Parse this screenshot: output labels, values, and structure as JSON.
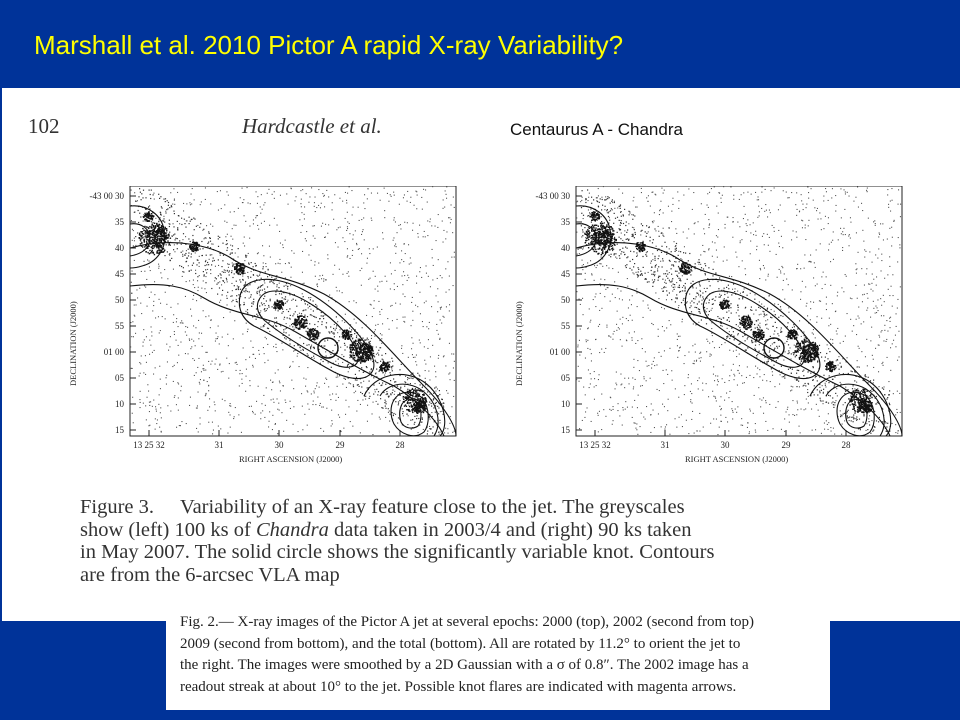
{
  "slide": {
    "title": "Marshall et al. 2010  Pictor A rapid X-ray Variability?"
  },
  "paper": {
    "page_number": "102",
    "running_head": "Hardcastle et al.",
    "overlay_label": "Centaurus A - Chandra",
    "figure": {
      "dec_ticks": [
        "-43 00 30",
        "35",
        "40",
        "45",
        "50",
        "55",
        "01 00",
        "05",
        "10",
        "15"
      ],
      "ra_ticks": [
        "13 25 32",
        "31",
        "30",
        "29",
        "28"
      ],
      "ylabel": "DECLINATION (J2000)",
      "xlabel": "RIGHT ASCENSION (J2000)"
    },
    "caption": {
      "label": "Figure 3.",
      "line1": "Variability of an X-ray feature close to the jet.  The greyscales",
      "line2_pre": "show (left) 100 ks of ",
      "line2_ital": "Chandra",
      "line2_post": " data taken in 2003/4 and (right) 90 ks taken",
      "line3": "in May 2007.  The solid circle shows the significantly variable knot.  Contours",
      "line4": "are from the 6-arcsec VLA map"
    }
  },
  "bottom_caption": {
    "line1": "Fig. 2.— X-ray images of the Pictor A jet at several epochs: 2000 (top), 2002 (second from top)",
    "line2": "2009 (second from bottom), and the total (bottom). All are rotated by 11.2° to orient the jet to",
    "line3": "the right.  The images were smoothed by a 2D Gaussian with a σ of 0.8″.  The 2002 image has a",
    "line4": "readout streak at about 10° to the jet. Possible knot flares are indicated with magenta arrows."
  }
}
